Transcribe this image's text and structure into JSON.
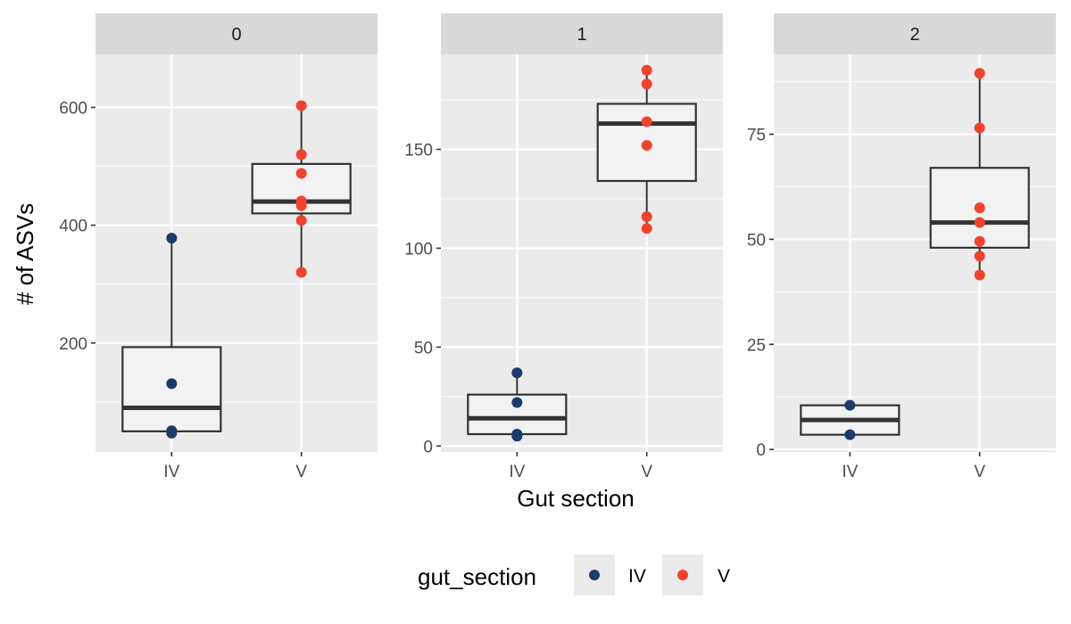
{
  "chart_data": {
    "type": "boxplot",
    "xlabel": "Gut section",
    "ylabel": "# of ASVs",
    "categories": [
      "IV",
      "V"
    ],
    "colors": {
      "IV": "#1b3a6e",
      "V": "#f2422b"
    },
    "legend": {
      "title": "gut_section",
      "placement": "bottom",
      "entries": [
        {
          "label": "IV",
          "color": "#1b3a6e"
        },
        {
          "label": "V",
          "color": "#f2422b"
        }
      ]
    },
    "panels": [
      {
        "strip": "0",
        "ylim": [
          15,
          690
        ],
        "yticks": [
          200,
          400,
          600
        ],
        "boxes": [
          {
            "category": "IV",
            "min": 45,
            "q1": 50,
            "median": 90,
            "q3": 193,
            "max": 378
          },
          {
            "category": "V",
            "min": 320,
            "q1": 420,
            "median": 440,
            "q3": 504,
            "max": 603
          }
        ],
        "points": [
          {
            "category": "IV",
            "values": [
              378,
              131,
              51,
              47
            ]
          },
          {
            "category": "V",
            "values": [
              603,
              520,
              488,
              441,
              433,
              408,
              320
            ]
          }
        ]
      },
      {
        "strip": "1",
        "ylim": [
          -3,
          198
        ],
        "yticks": [
          0,
          50,
          100,
          150
        ],
        "boxes": [
          {
            "category": "IV",
            "min": 5,
            "q1": 6,
            "median": 14,
            "q3": 26,
            "max": 37
          },
          {
            "category": "V",
            "min": 110,
            "q1": 134,
            "median": 163,
            "q3": 173,
            "max": 190
          }
        ],
        "points": [
          {
            "category": "IV",
            "values": [
              37,
              22,
              6,
              5
            ]
          },
          {
            "category": "V",
            "values": [
              190,
              183,
              164,
              152,
              116,
              110
            ]
          }
        ]
      },
      {
        "strip": "2",
        "ylim": [
          -0.6,
          94
        ],
        "yticks": [
          0,
          25,
          50,
          75
        ],
        "boxes": [
          {
            "category": "IV",
            "min": 3.5,
            "q1": 3.5,
            "median": 7,
            "q3": 10.5,
            "max": 10.5
          },
          {
            "category": "V",
            "min": 41.5,
            "q1": 48,
            "median": 54,
            "q3": 67,
            "max": 89.5
          }
        ],
        "points": [
          {
            "category": "IV",
            "values": [
              10.5,
              3.5
            ]
          },
          {
            "category": "V",
            "values": [
              89.5,
              76.5,
              57.5,
              54,
              49.5,
              46,
              41.5
            ]
          }
        ]
      }
    ]
  }
}
